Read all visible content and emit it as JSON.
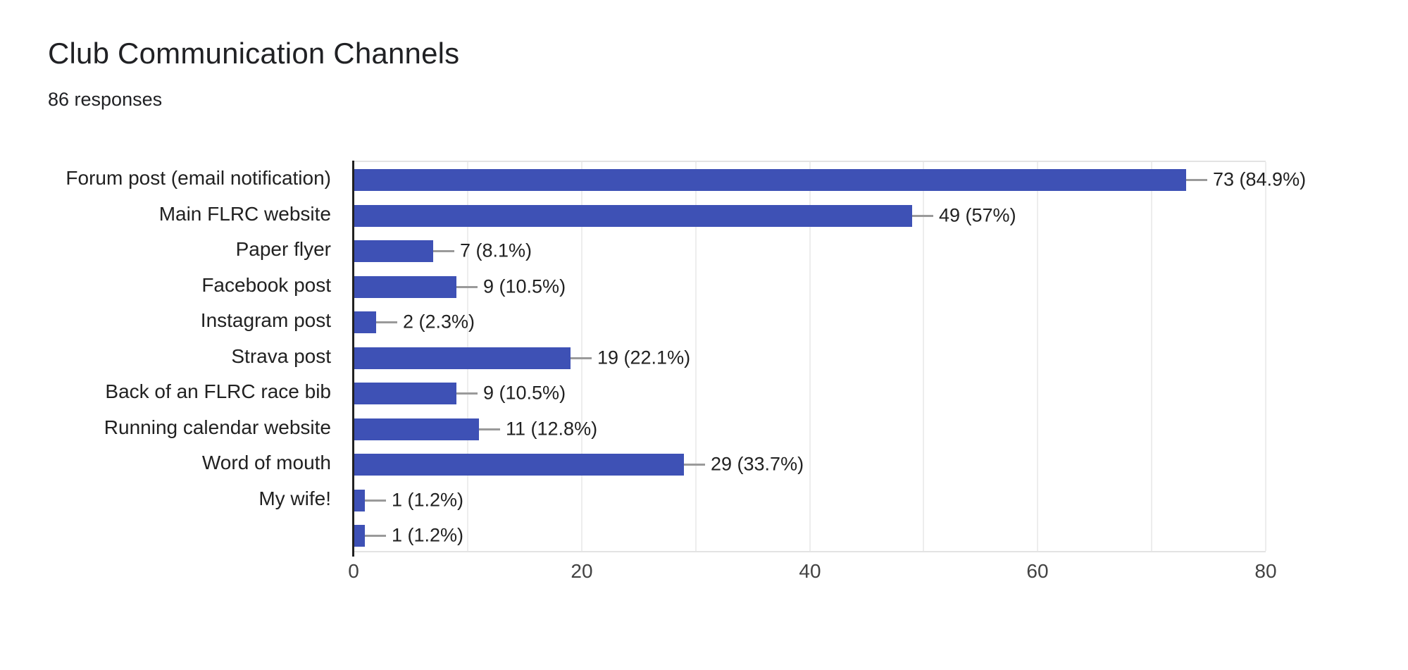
{
  "header": {
    "title": "Club Communication Channels",
    "subtitle": "86 responses"
  },
  "chart_data": {
    "type": "bar",
    "orientation": "horizontal",
    "title": "Club Communication Channels",
    "subtitle": "86 responses",
    "total_responses": 86,
    "categories": [
      "Forum post (email notification)",
      "Main FLRC website",
      "Paper flyer",
      "Facebook post",
      "Instagram post",
      "Strava post",
      "Back of an FLRC race bib",
      "Running calendar website",
      "Word of mouth",
      "My wife!",
      ""
    ],
    "values": [
      73,
      49,
      7,
      9,
      2,
      19,
      9,
      11,
      29,
      1,
      1
    ],
    "percentages": [
      84.9,
      57,
      8.1,
      10.5,
      2.3,
      22.1,
      10.5,
      12.8,
      33.7,
      1.2,
      1.2
    ],
    "value_labels": [
      "73 (84.9%)",
      "49 (57%)",
      "7 (8.1%)",
      "9 (10.5%)",
      "2 (2.3%)",
      "19 (22.1%)",
      "9 (10.5%)",
      "11 (12.8%)",
      "29 (33.7%)",
      "1 (1.2%)",
      "1 (1.2%)"
    ],
    "xlabel": "",
    "ylabel": "",
    "xlim": [
      0,
      80
    ],
    "x_ticks": [
      0,
      20,
      40,
      60,
      80
    ],
    "gridline_step": 10,
    "grid": true,
    "legend_position": "none",
    "bar_color": "#3e51b5",
    "gridline_color": "#ededed",
    "axis_color": "#212121",
    "leader_line_color": "#9a9a9a"
  }
}
